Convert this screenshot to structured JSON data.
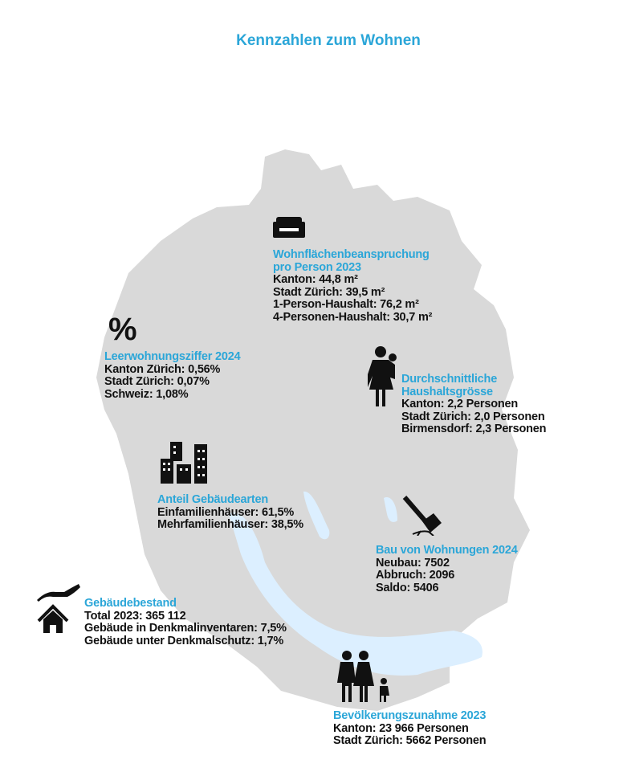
{
  "title": "Kennzahlen zum Wohnen",
  "colors": {
    "accent": "#2ba6d8",
    "map": "#d9d9d9",
    "water": "#dceefa",
    "text": "#111111"
  },
  "blocks": {
    "wohnflaeche": {
      "icon": "sofa-icon",
      "heading": [
        "Wohnflächenbeanspruchung",
        "pro Person 2023"
      ],
      "lines": [
        "Kanton: 44,8 m²",
        "Stadt Zürich: 39,5 m²",
        "1-Person-Haushalt: 76,2 m²",
        "4-Personen-Haushalt: 30,7 m²"
      ]
    },
    "leerwohnung": {
      "icon": "percent-icon",
      "icon_text": "%",
      "heading": [
        "Leerwohnungsziffer 2024"
      ],
      "lines": [
        "Kanton Zürich: 0,56%",
        "Stadt Zürich: 0,07%",
        "Schweiz: 1,08%"
      ]
    },
    "haushalt": {
      "icon": "mother-child-icon",
      "heading": [
        "Durchschnittliche",
        "Haushaltsgrösse"
      ],
      "lines": [
        "Kanton: 2,2 Personen",
        "Stadt Zürich: 2,0 Personen",
        "Birmensdorf: 2,3 Personen"
      ]
    },
    "gebaeudearten": {
      "icon": "buildings-icon",
      "heading": [
        "Anteil Gebäudearten"
      ],
      "lines": [
        "Einfamilienhäuser: 61,5%",
        "Mehrfamilienhäuser: 38,5%"
      ]
    },
    "bau": {
      "icon": "hammer-icon",
      "heading": [
        "Bau von Wohnungen 2024"
      ],
      "lines": [
        "Neubau: 7502",
        "Abbruch: 2096",
        "Saldo: 5406"
      ]
    },
    "bestand": {
      "icon": "hand-house-icon",
      "heading": [
        "Gebäudebestand"
      ],
      "lines": [
        "Total 2023: 365 112",
        "Gebäude in Denkmalinventaren: 7,5%",
        "Gebäude unter Denkmalschutz: 1,7%"
      ]
    },
    "bevoelkerung": {
      "icon": "family-icon",
      "heading": [
        "Bevölkerungszunahme 2023"
      ],
      "lines": [
        "Kanton: 23 966 Personen",
        "Stadt Zürich: 5662 Personen"
      ]
    }
  }
}
